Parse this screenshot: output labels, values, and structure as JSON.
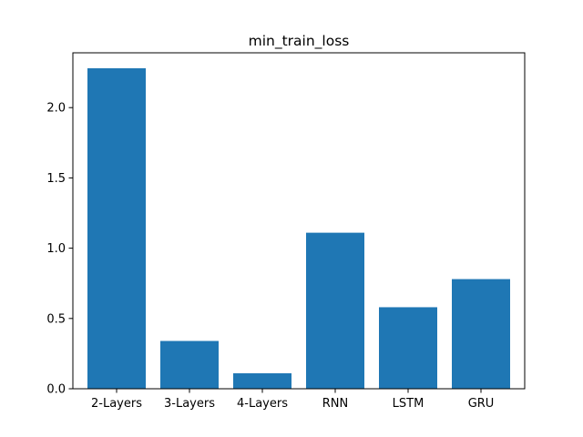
{
  "chart_data": {
    "type": "bar",
    "title": "min_train_loss",
    "xlabel": "",
    "ylabel": "",
    "categories": [
      "2-Layers",
      "3-Layers",
      "4-Layers",
      "RNN",
      "LSTM",
      "GRU"
    ],
    "values": [
      2.28,
      0.34,
      0.11,
      1.11,
      0.58,
      0.78
    ],
    "ylim": [
      0,
      2.39
    ],
    "yticks": [
      "0.0",
      "0.5",
      "1.0",
      "1.5",
      "2.0"
    ],
    "grid": false,
    "bar_color": "#1f77b4"
  }
}
